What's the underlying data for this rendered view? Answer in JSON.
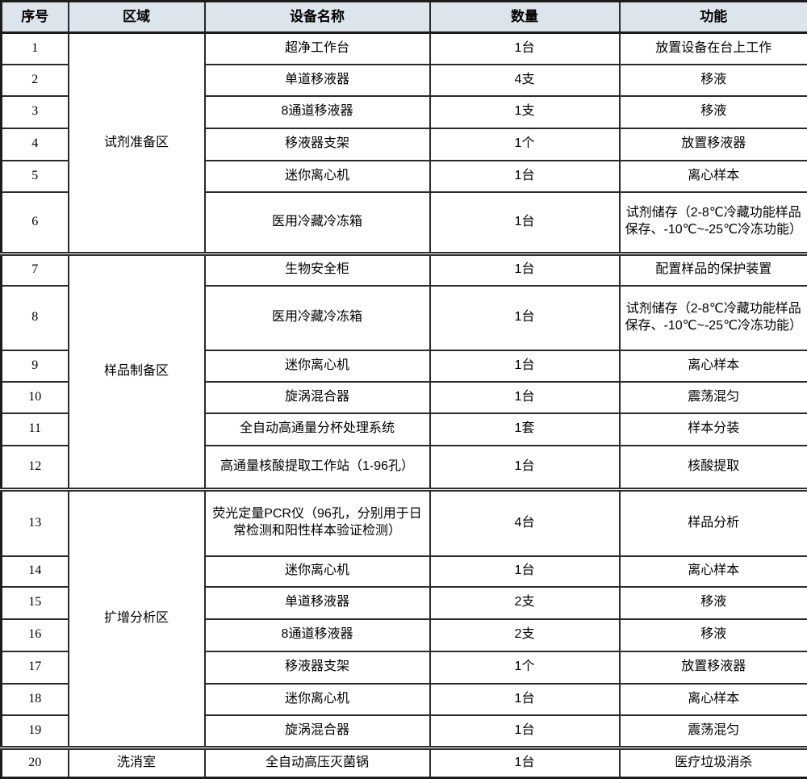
{
  "colors": {
    "header_bg": "#dde4ec",
    "border": "#2a2a2a",
    "text": "#000000"
  },
  "table": {
    "headers": [
      "序号",
      "区域",
      "设备名称",
      "数量",
      "功能"
    ],
    "groups": [
      {
        "area": "试剂准备区",
        "rows": [
          {
            "no": "1",
            "device": "超净工作台",
            "qty": "1台",
            "func": "放置设备在台上工作"
          },
          {
            "no": "2",
            "device": "单道移液器",
            "qty": "4支",
            "func": "移液"
          },
          {
            "no": "3",
            "device": "8通道移液器",
            "qty": "1支",
            "func": "移液"
          },
          {
            "no": "4",
            "device": "移液器支架",
            "qty": "1个",
            "func": "放置移液器"
          },
          {
            "no": "5",
            "device": "迷你离心机",
            "qty": "1台",
            "func": "离心样本"
          },
          {
            "no": "6",
            "device": "医用冷藏冷冻箱",
            "qty": "1台",
            "func": "试剂储存（2-8℃冷藏功能样品保存、-10℃~-25℃冷冻功能）"
          }
        ]
      },
      {
        "area": "样品制备区",
        "rows": [
          {
            "no": "7",
            "device": "生物安全柜",
            "qty": "1台",
            "func": "配置样品的保护装置"
          },
          {
            "no": "8",
            "device": "医用冷藏冷冻箱",
            "qty": "1台",
            "func": "试剂储存（2-8℃冷藏功能样品保存、-10℃~-25℃冷冻功能）"
          },
          {
            "no": "9",
            "device": "迷你离心机",
            "qty": "1台",
            "func": "离心样本"
          },
          {
            "no": "10",
            "device": "旋涡混合器",
            "qty": "1台",
            "func": "震荡混匀"
          },
          {
            "no": "11",
            "device": "全自动高通量分杯处理系统",
            "qty": "1套",
            "func": "样本分装"
          },
          {
            "no": "12",
            "device": "高通量核酸提取工作站（1-96孔）",
            "qty": "1台",
            "func": "核酸提取"
          }
        ]
      },
      {
        "area": "扩增分析区",
        "rows": [
          {
            "no": "13",
            "device": "荧光定量PCR仪（96孔，分别用于日常检测和阳性样本验证检测）",
            "qty": "4台",
            "func": "样品分析"
          },
          {
            "no": "14",
            "device": "迷你离心机",
            "qty": "1台",
            "func": "离心样本"
          },
          {
            "no": "15",
            "device": "单道移液器",
            "qty": "2支",
            "func": "移液"
          },
          {
            "no": "16",
            "device": "8通道移液器",
            "qty": "2支",
            "func": "移液"
          },
          {
            "no": "17",
            "device": "移液器支架",
            "qty": "1个",
            "func": "放置移液器"
          },
          {
            "no": "18",
            "device": "迷你离心机",
            "qty": "1台",
            "func": "离心样本"
          },
          {
            "no": "19",
            "device": "旋涡混合器",
            "qty": "1台",
            "func": "震荡混匀"
          }
        ]
      },
      {
        "area": "洗消室",
        "rows": [
          {
            "no": "20",
            "device": "全自动高压灭菌锅",
            "qty": "1台",
            "func": "医疗垃圾消杀"
          }
        ]
      }
    ]
  }
}
